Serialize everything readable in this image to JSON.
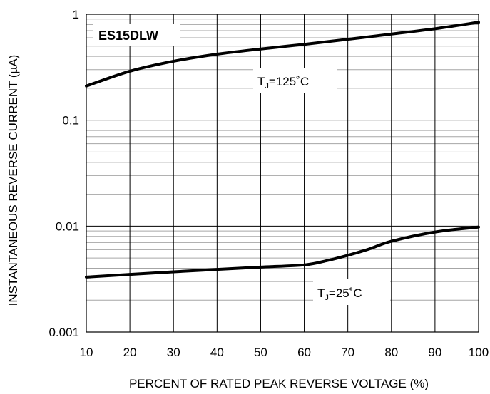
{
  "chart_data": {
    "type": "line",
    "title": "ES15DLW",
    "xlabel": "PERCENT OF RATED PEAK REVERSE VOLTAGE (%)",
    "ylabel": "INSTANTANEOUS REVERSE CURRENT (µA)",
    "xlim": [
      10,
      100
    ],
    "ylim": [
      0.001,
      1
    ],
    "y_scale": "log",
    "x_ticks": [
      10,
      20,
      30,
      40,
      50,
      60,
      70,
      80,
      90,
      100
    ],
    "x_tick_labels": [
      "10",
      "20",
      "30",
      "40",
      "50",
      "60",
      "70",
      "80",
      "90",
      "100"
    ],
    "y_ticks": [
      0.001,
      0.01,
      0.1,
      1
    ],
    "y_tick_labels": [
      "0.001",
      "0.01",
      "0.1",
      "1"
    ],
    "grid": true,
    "series": [
      {
        "label_main": "T",
        "label_sub": "J",
        "label_rest": "=125˚C",
        "x": [
          10,
          20,
          30,
          40,
          50,
          60,
          70,
          80,
          90,
          100
        ],
        "y": [
          0.21,
          0.29,
          0.36,
          0.42,
          0.47,
          0.52,
          0.58,
          0.65,
          0.73,
          0.84
        ]
      },
      {
        "label_main": "T",
        "label_sub": "J",
        "label_rest": "=25˚C",
        "x": [
          10,
          20,
          30,
          40,
          50,
          60,
          65,
          70,
          75,
          80,
          90,
          100
        ],
        "y": [
          0.0033,
          0.0035,
          0.0037,
          0.0039,
          0.0041,
          0.0043,
          0.0047,
          0.0053,
          0.0061,
          0.0072,
          0.0088,
          0.0098
        ]
      }
    ]
  }
}
